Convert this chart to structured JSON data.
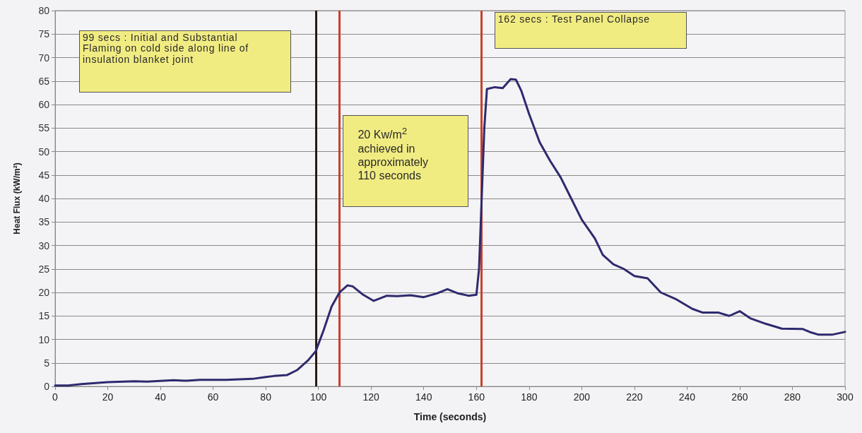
{
  "chart_data": {
    "type": "line",
    "xlabel": "Time (seconds)",
    "ylabel": "Heat Flux (kW/m²)",
    "x": [
      0,
      5,
      10,
      20,
      30,
      35,
      45,
      50,
      55,
      65,
      75,
      80,
      83,
      88,
      92,
      96,
      99,
      102,
      105,
      108,
      111,
      113,
      117,
      121,
      126,
      130,
      135,
      140,
      145,
      149,
      153,
      157,
      160,
      161,
      162,
      163,
      164,
      167,
      170,
      173,
      175,
      177,
      180,
      184,
      188,
      192,
      196,
      200,
      205,
      208,
      212,
      216,
      220,
      225,
      230,
      236,
      242,
      246,
      252,
      256,
      260,
      264,
      270,
      276,
      284,
      287,
      290,
      295,
      300
    ],
    "series": [
      {
        "color": "#2e2a6e",
        "values": [
          0.2,
          0.2,
          0.5,
          0.9,
          1.1,
          1.0,
          1.3,
          1.2,
          1.4,
          1.4,
          1.6,
          2.0,
          2.2,
          2.4,
          3.5,
          5.5,
          7.5,
          12,
          17,
          20,
          21.5,
          21.3,
          19.5,
          18.2,
          19.3,
          19.2,
          19.4,
          19,
          19.8,
          20.7,
          19.8,
          19.3,
          19.5,
          25,
          40,
          55,
          63.3,
          63.7,
          63.5,
          65.4,
          65.3,
          63,
          58,
          52,
          48,
          44.5,
          40,
          35.5,
          31.5,
          28,
          26,
          25,
          23.5,
          23,
          20,
          18.5,
          16.5,
          15.7,
          15.7,
          15,
          16,
          14.5,
          13.3,
          12.3,
          12.2,
          11.5,
          11,
          11,
          11.6
        ]
      }
    ],
    "xlim": [
      0,
      300
    ],
    "xticks": [
      0,
      20,
      40,
      60,
      80,
      100,
      120,
      140,
      160,
      180,
      200,
      220,
      240,
      260,
      280,
      300
    ],
    "ylim": [
      0,
      80
    ],
    "yticks": [
      0,
      5,
      10,
      15,
      20,
      25,
      30,
      35,
      40,
      45,
      50,
      55,
      60,
      65,
      70,
      75,
      80
    ],
    "grid": "y",
    "marker": "none",
    "line_style": "solid",
    "ref_lines": [
      {
        "axis": "x",
        "value": 99,
        "label": "99 secs : Initial and Substantial Flaming on cold side along line of insulation blanket joint",
        "color": "#2b1a12"
      },
      {
        "axis": "x",
        "value": 108,
        "label": "20 Kw/m$^{2}$ achieved in approximately 110 seconds",
        "color": "#c8412b"
      },
      {
        "axis": "x",
        "value": 162,
        "label": "162 secs : Test Panel Collapse",
        "color": "#c8412b"
      }
    ]
  }
}
